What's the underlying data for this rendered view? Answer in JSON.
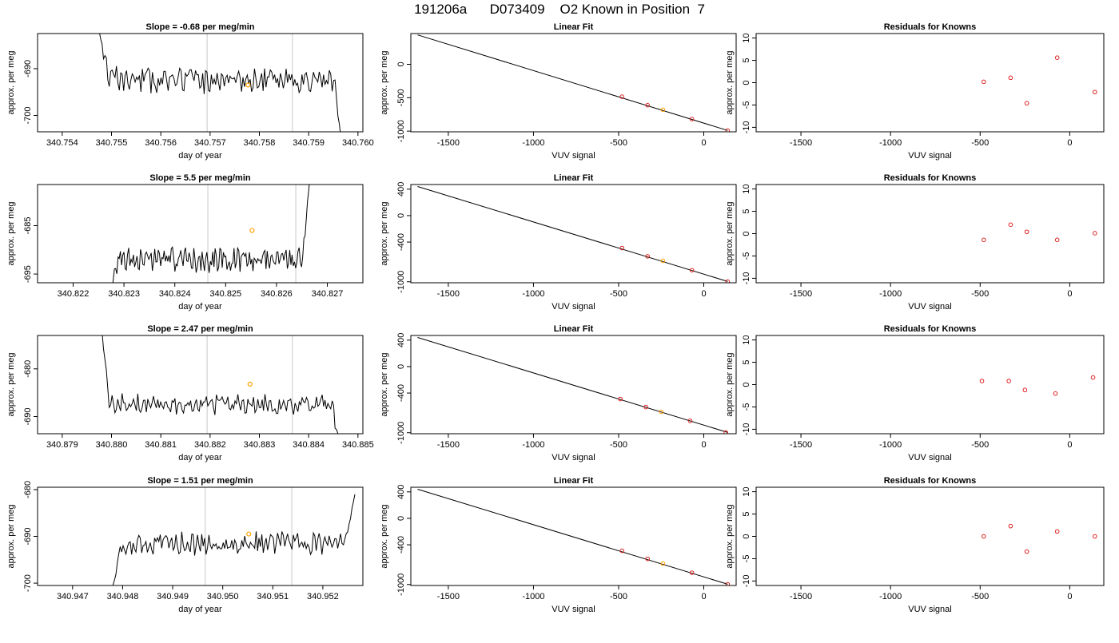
{
  "figure": {
    "title": "191206a      D073409    O2 Known in Position  7"
  },
  "axis_labels": {
    "time_x": "day of year",
    "fit_x": "VUV signal",
    "y": "approx. per meg"
  },
  "chart_data": [
    {
      "type": "line",
      "title": "Slope =  -0.68  per meg/min",
      "xlabel": "day of year",
      "ylabel": "approx. per meg",
      "xlim": [
        340.7535,
        340.7601
      ],
      "ylim": [
        -703.5,
        -682.5
      ],
      "xticks": [
        340.754,
        340.755,
        340.756,
        340.757,
        340.758,
        340.759,
        340.76
      ],
      "xtick_labels": [
        "340.754",
        "340.755",
        "340.756",
        "340.757",
        "340.758",
        "340.759",
        "340.760"
      ],
      "yticks": [
        -690,
        -700
      ],
      "ytick_labels": [
        "-690",
        "-700"
      ],
      "vlines": [
        340.75694,
        340.75867
      ],
      "marker": {
        "x": 340.75777,
        "y": -693.5
      },
      "series": [
        {
          "x_start": 340.75475,
          "x_end": 340.75971,
          "center": -692.5,
          "trend": 0.0,
          "amp": 2.2,
          "start": -682,
          "end": -710,
          "seed": 11
        }
      ]
    },
    {
      "type": "scatter",
      "title": "Linear Fit",
      "xlabel": "VUV signal",
      "ylabel": "approx. per meg",
      "xlim": [
        -1720,
        190
      ],
      "ylim": [
        -1010,
        460
      ],
      "xticks": [
        -1500,
        -1000,
        -500,
        0
      ],
      "xtick_labels": [
        "-1500",
        "-1000",
        "-500",
        "0"
      ],
      "yticks": [
        0,
        -500,
        -1000
      ],
      "ytick_labels": [
        "0",
        "-500",
        "-1000"
      ],
      "fit_line": {
        "x": [
          -1680,
          140
        ],
        "y": [
          440,
          -990
        ]
      },
      "points": [
        {
          "x": -480,
          "y": -485,
          "color": "#e02020"
        },
        {
          "x": -330,
          "y": -612,
          "color": "#e02020"
        },
        {
          "x": -240,
          "y": -680,
          "color": "#ffa000"
        },
        {
          "x": -70,
          "y": -820,
          "color": "#e02020"
        },
        {
          "x": 140,
          "y": -992,
          "color": "#e02020"
        }
      ]
    },
    {
      "type": "scatter",
      "title": "Residuals for Knowns",
      "xlabel": "VUV signal",
      "ylabel": "approx. per meg",
      "xlim": [
        -1750,
        190
      ],
      "ylim": [
        -11,
        11
      ],
      "xticks": [
        -1500,
        -1000,
        -500,
        0
      ],
      "xtick_labels": [
        "-1500",
        "-1000",
        "-500",
        "0"
      ],
      "yticks": [
        10,
        5,
        0,
        -5,
        -10
      ],
      "ytick_labels": [
        "10",
        "5",
        "0",
        "-5",
        "-10"
      ],
      "points": [
        {
          "x": -480,
          "y": 0.2,
          "color": "#e02020"
        },
        {
          "x": -330,
          "y": 1.1,
          "color": "#e02020"
        },
        {
          "x": -240,
          "y": -4.6,
          "color": "#e02020"
        },
        {
          "x": -70,
          "y": 5.6,
          "color": "#e02020"
        },
        {
          "x": 140,
          "y": -2.1,
          "color": "#e02020"
        }
      ]
    },
    {
      "type": "line",
      "title": "Slope =  5.5  per meg/min",
      "xlabel": "day of year",
      "ylabel": "approx. per meg",
      "xlim": [
        340.8213,
        340.8277
      ],
      "ylim": [
        -696.8,
        -676.5
      ],
      "xticks": [
        340.822,
        340.823,
        340.824,
        340.825,
        340.826,
        340.827
      ],
      "xtick_labels": [
        "340.822",
        "340.823",
        "340.824",
        "340.825",
        "340.826",
        "340.827"
      ],
      "yticks": [
        -685,
        -695
      ],
      "ytick_labels": [
        "-685",
        "-695"
      ],
      "vlines": [
        340.82465,
        340.82638
      ],
      "marker": {
        "x": 340.82552,
        "y": -686.0
      },
      "series": [
        {
          "x_start": 340.82272,
          "x_end": 340.82668,
          "center": -692.0,
          "trend": 0.0037,
          "amp": 2.0,
          "start": -700,
          "end": -672,
          "seed": 23
        }
      ]
    },
    {
      "type": "scatter",
      "title": "Linear Fit",
      "xlabel": "VUV signal",
      "ylabel": "approx. per meg",
      "xlim": [
        -1720,
        190
      ],
      "ylim": [
        -1015,
        470
      ],
      "xticks": [
        -1500,
        -1000,
        -500,
        0
      ],
      "xtick_labels": [
        "-1500",
        "-1000",
        "-500",
        "0"
      ],
      "yticks": [
        400,
        0,
        -400,
        -1000
      ],
      "ytick_labels": [
        "400",
        "0",
        "-400",
        "-1000"
      ],
      "fit_line": {
        "x": [
          -1680,
          140
        ],
        "y": [
          440,
          -995
        ]
      },
      "points": [
        {
          "x": -480,
          "y": -490,
          "color": "#e02020"
        },
        {
          "x": -330,
          "y": -615,
          "color": "#e02020"
        },
        {
          "x": -240,
          "y": -683,
          "color": "#ffa000"
        },
        {
          "x": -70,
          "y": -825,
          "color": "#e02020"
        },
        {
          "x": 140,
          "y": -997,
          "color": "#e02020"
        }
      ]
    },
    {
      "type": "scatter",
      "title": "Residuals for Knowns",
      "xlabel": "VUV signal",
      "ylabel": "approx. per meg",
      "xlim": [
        -1750,
        190
      ],
      "ylim": [
        -11,
        11
      ],
      "xticks": [
        -1500,
        -1000,
        -500,
        0
      ],
      "xtick_labels": [
        "-1500",
        "-1000",
        "-500",
        "0"
      ],
      "yticks": [
        10,
        5,
        0,
        -5,
        -10
      ],
      "ytick_labels": [
        "10",
        "5",
        "0",
        "-5",
        "-10"
      ],
      "points": [
        {
          "x": -480,
          "y": -1.4,
          "color": "#e02020"
        },
        {
          "x": -330,
          "y": 2.0,
          "color": "#e02020"
        },
        {
          "x": -240,
          "y": 0.4,
          "color": "#e02020"
        },
        {
          "x": -70,
          "y": -1.4,
          "color": "#e02020"
        },
        {
          "x": 140,
          "y": 0.1,
          "color": "#e02020"
        }
      ]
    },
    {
      "type": "line",
      "title": "Slope =  2.47  per meg/min",
      "xlabel": "day of year",
      "ylabel": "approx. per meg",
      "xlim": [
        340.8785,
        340.8851
      ],
      "ylim": [
        -693.6,
        -673.0
      ],
      "xticks": [
        340.879,
        340.88,
        340.881,
        340.882,
        340.883,
        340.884,
        340.885
      ],
      "xtick_labels": [
        "340.879",
        "340.880",
        "340.881",
        "340.882",
        "340.883",
        "340.884",
        "340.885"
      ],
      "yticks": [
        -680,
        -690
      ],
      "ytick_labels": [
        "-680",
        "-690"
      ],
      "vlines": [
        340.88194,
        340.88367
      ],
      "marker": {
        "x": 340.88281,
        "y": -683.2
      },
      "series": [
        {
          "x_start": 340.87975,
          "x_end": 340.88468,
          "center": -687.5,
          "trend": 0.0012,
          "amp": 1.8,
          "start": -666,
          "end": -700,
          "seed": 37
        }
      ]
    },
    {
      "type": "scatter",
      "title": "Linear Fit",
      "xlabel": "VUV signal",
      "ylabel": "approx. per meg",
      "xlim": [
        -1720,
        190
      ],
      "ylim": [
        -1015,
        470
      ],
      "xticks": [
        -1500,
        -1000,
        -500,
        0
      ],
      "xtick_labels": [
        "-1500",
        "-1000",
        "-500",
        "0"
      ],
      "yticks": [
        400,
        0,
        -400,
        -1000
      ],
      "ytick_labels": [
        "400",
        "0",
        "-400",
        "-1000"
      ],
      "fit_line": {
        "x": [
          -1680,
          140
        ],
        "y": [
          440,
          -995
        ]
      },
      "points": [
        {
          "x": -490,
          "y": -490,
          "color": "#e02020"
        },
        {
          "x": -340,
          "y": -612,
          "color": "#e02020"
        },
        {
          "x": -250,
          "y": -683,
          "color": "#ffa000"
        },
        {
          "x": -80,
          "y": -820,
          "color": "#e02020"
        },
        {
          "x": 130,
          "y": -997,
          "color": "#e02020"
        }
      ]
    },
    {
      "type": "scatter",
      "title": "Residuals for Knowns",
      "xlabel": "VUV signal",
      "ylabel": "approx. per meg",
      "xlim": [
        -1750,
        190
      ],
      "ylim": [
        -11,
        11
      ],
      "xticks": [
        -1500,
        -1000,
        -500,
        0
      ],
      "xtick_labels": [
        "-1500",
        "-1000",
        "-500",
        "0"
      ],
      "yticks": [
        10,
        5,
        0,
        -5,
        -10
      ],
      "ytick_labels": [
        "10",
        "5",
        "0",
        "-5",
        "-10"
      ],
      "points": [
        {
          "x": -490,
          "y": 0.8,
          "color": "#e02020"
        },
        {
          "x": -340,
          "y": 0.8,
          "color": "#e02020"
        },
        {
          "x": -250,
          "y": -1.2,
          "color": "#e02020"
        },
        {
          "x": -80,
          "y": -2.0,
          "color": "#e02020"
        },
        {
          "x": 130,
          "y": 1.6,
          "color": "#e02020"
        }
      ]
    },
    {
      "type": "line",
      "title": "Slope =  1.51  per meg/min",
      "xlabel": "day of year",
      "ylabel": "approx. per meg",
      "xlim": [
        340.9463,
        340.9528
      ],
      "ylim": [
        -700.5,
        -679.5
      ],
      "xticks": [
        340.947,
        340.948,
        340.949,
        340.95,
        340.951,
        340.952
      ],
      "xtick_labels": [
        "340.947",
        "340.948",
        "340.949",
        "340.950",
        "340.951",
        "340.952"
      ],
      "yticks": [
        -680,
        -690,
        -700
      ],
      "ytick_labels": [
        "-680",
        "-690",
        "-700"
      ],
      "vlines": [
        340.94965,
        340.95138
      ],
      "marker": {
        "x": 340.95052,
        "y": -689.5
      },
      "series": [
        {
          "x_start": 340.94778,
          "x_end": 340.95264,
          "center": -691.5,
          "trend": 0.0013,
          "amp": 1.9,
          "start": -702,
          "end": -681,
          "seed": 51
        }
      ]
    },
    {
      "type": "scatter",
      "title": "Linear Fit",
      "xlabel": "VUV signal",
      "ylabel": "approx. per meg",
      "xlim": [
        -1720,
        190
      ],
      "ylim": [
        -1015,
        470
      ],
      "xticks": [
        -1500,
        -1000,
        -500,
        0
      ],
      "xtick_labels": [
        "-1500",
        "-1000",
        "-500",
        "0"
      ],
      "yticks": [
        400,
        0,
        -400,
        -1000
      ],
      "ytick_labels": [
        "400",
        "0",
        "-400",
        "-1000"
      ],
      "fit_line": {
        "x": [
          -1680,
          140
        ],
        "y": [
          440,
          -995
        ]
      },
      "points": [
        {
          "x": -480,
          "y": -490,
          "color": "#e02020"
        },
        {
          "x": -330,
          "y": -612,
          "color": "#e02020"
        },
        {
          "x": -240,
          "y": -683,
          "color": "#ffa000"
        },
        {
          "x": -70,
          "y": -822,
          "color": "#e02020"
        },
        {
          "x": 140,
          "y": -997,
          "color": "#e02020"
        }
      ]
    },
    {
      "type": "scatter",
      "title": "Residuals for Knowns",
      "xlabel": "VUV signal",
      "ylabel": "approx. per meg",
      "xlim": [
        -1750,
        190
      ],
      "ylim": [
        -11,
        11
      ],
      "xticks": [
        -1500,
        -1000,
        -500,
        0
      ],
      "xtick_labels": [
        "-1500",
        "-1000",
        "-500",
        "0"
      ],
      "yticks": [
        10,
        5,
        0,
        -5,
        -10
      ],
      "ytick_labels": [
        "10",
        "5",
        "0",
        "-5",
        "-10"
      ],
      "points": [
        {
          "x": -480,
          "y": 0.0,
          "color": "#e02020"
        },
        {
          "x": -330,
          "y": 2.3,
          "color": "#e02020"
        },
        {
          "x": -240,
          "y": -3.4,
          "color": "#e02020"
        },
        {
          "x": -70,
          "y": 1.1,
          "color": "#e02020"
        },
        {
          "x": 140,
          "y": 0.0,
          "color": "#e02020"
        }
      ]
    }
  ]
}
